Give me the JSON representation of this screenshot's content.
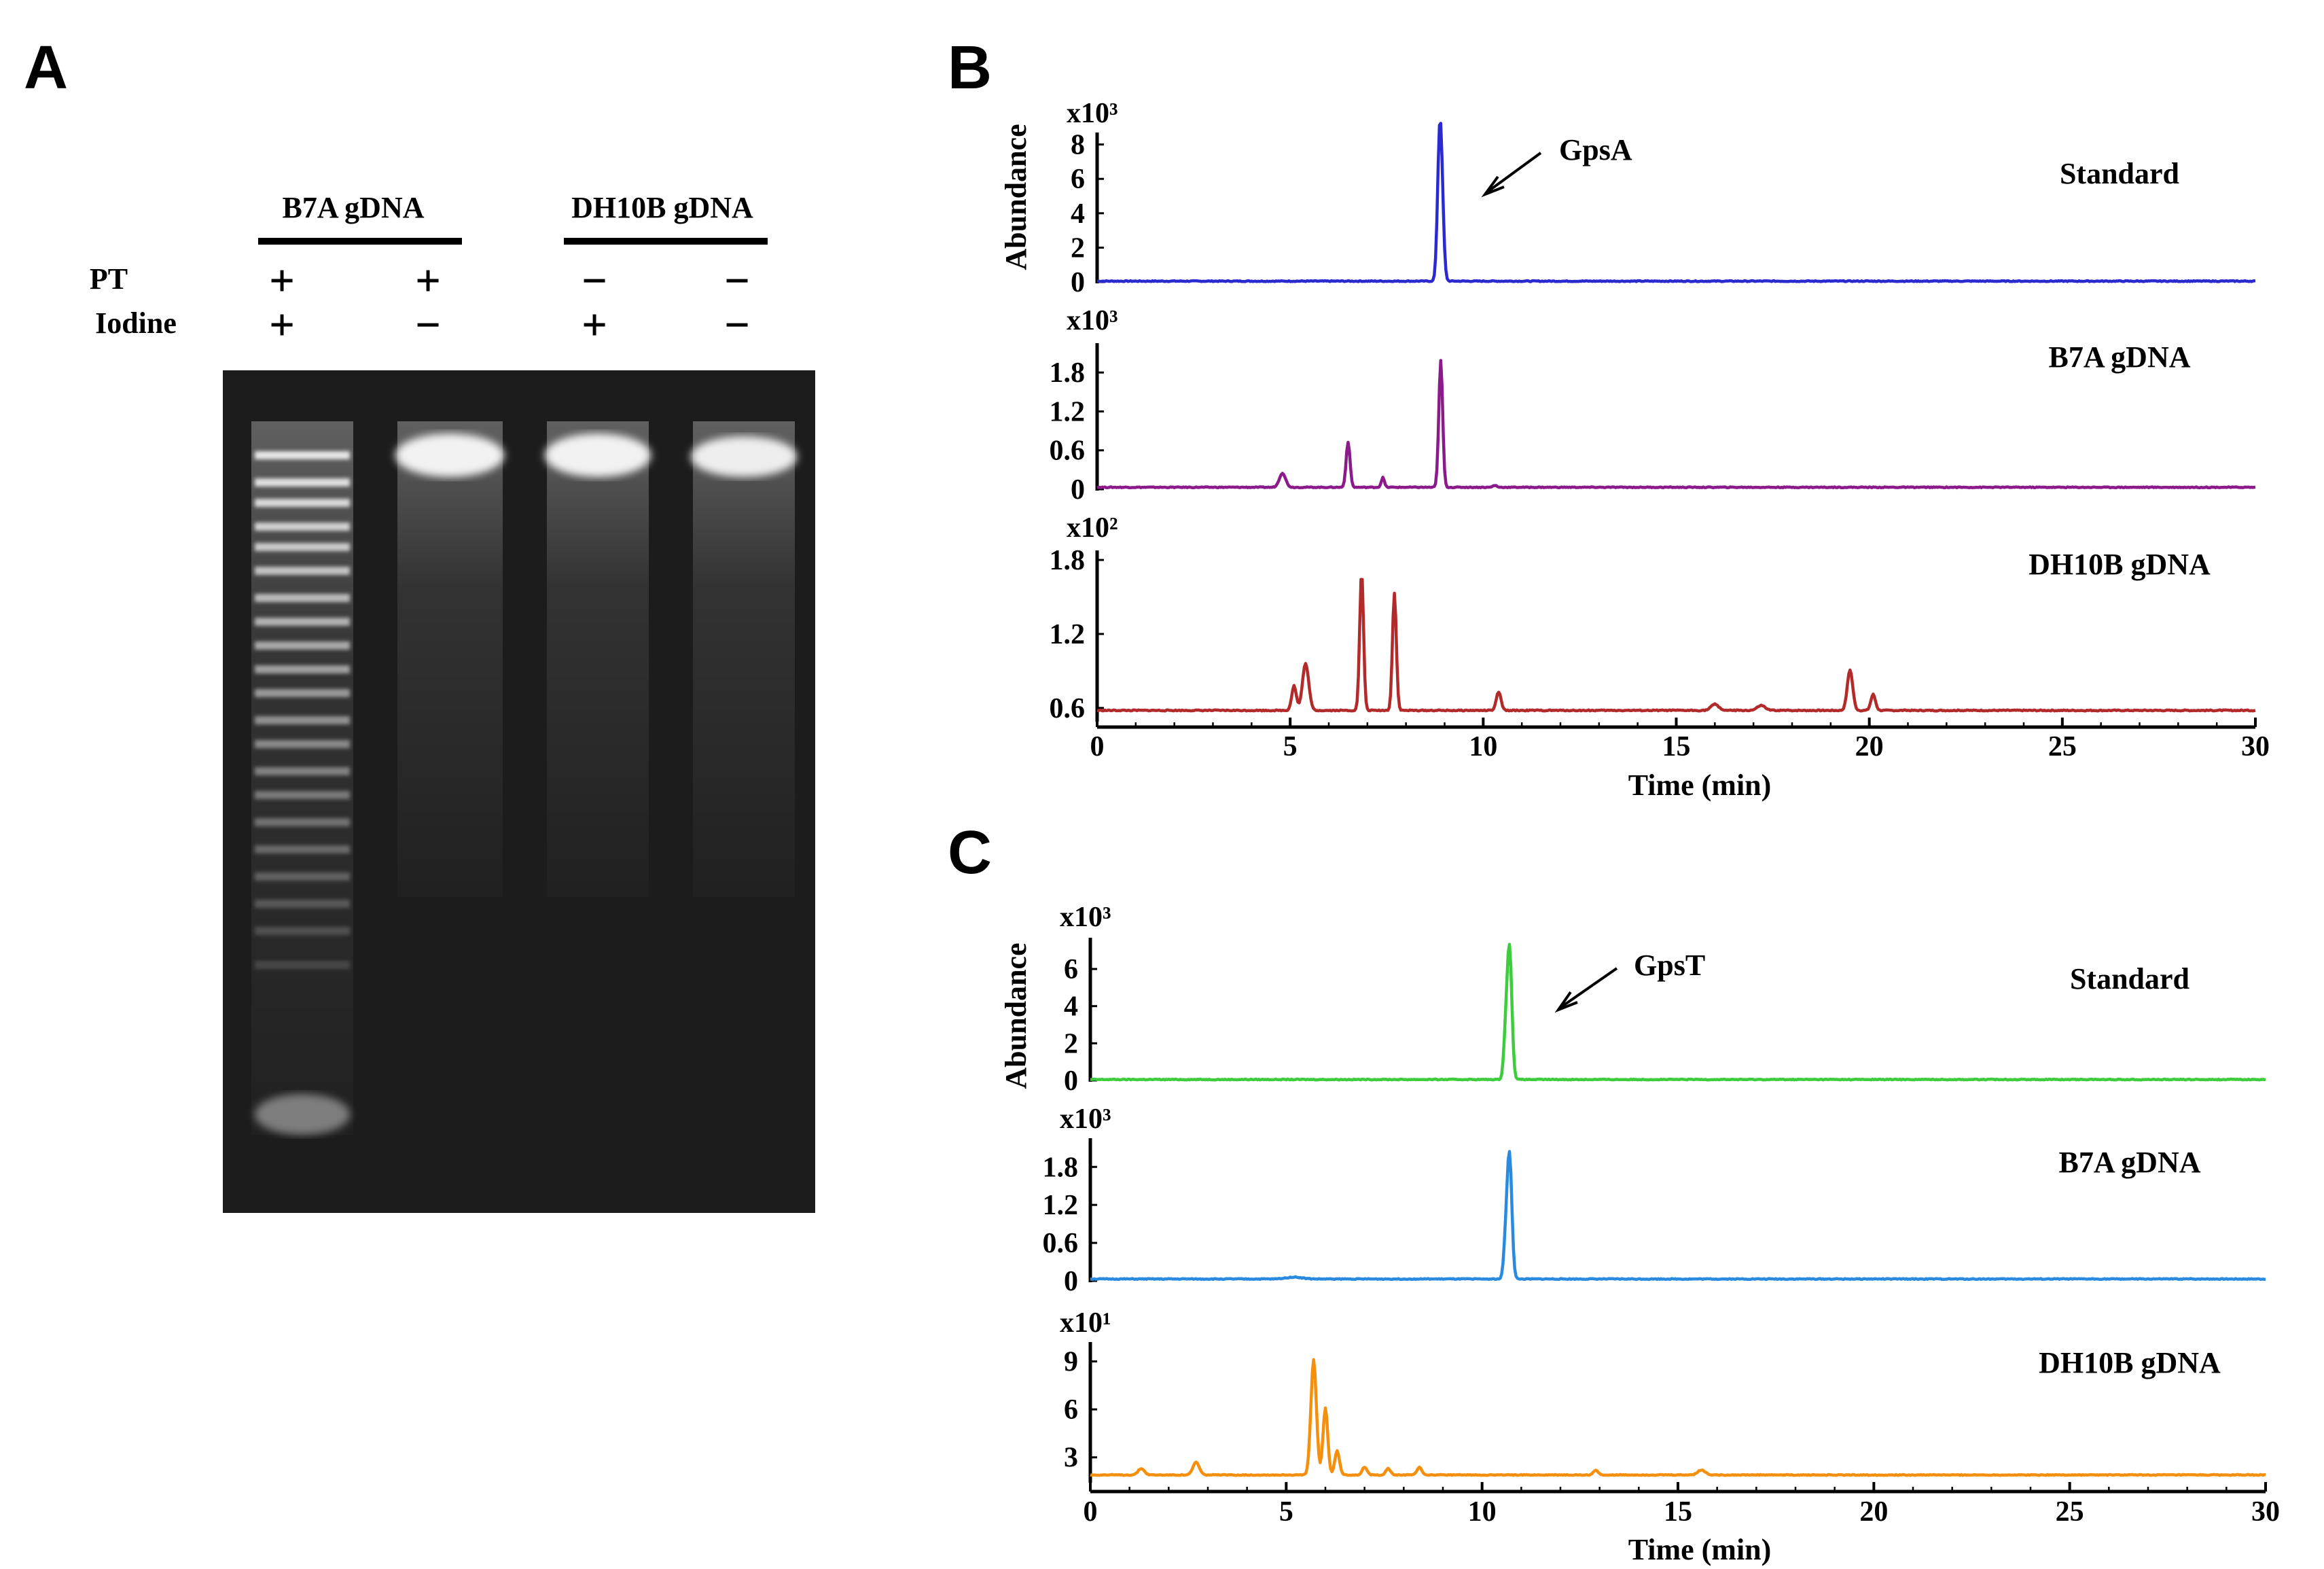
{
  "panels": {
    "A": "A",
    "B": "B",
    "C": "C"
  },
  "gel": {
    "group_labels": [
      "B7A gDNA",
      "DH10B gDNA"
    ],
    "row_labels": [
      "PT",
      "Iodine"
    ],
    "pt_signs": [
      "+",
      "+",
      "−",
      "−"
    ],
    "iodine_signs": [
      "+",
      "−",
      "+",
      "−"
    ]
  },
  "chart_data": [
    {
      "type": "line",
      "panel": "B",
      "xlabel": "Time (min)",
      "xlim": [
        0,
        30
      ],
      "xticks": [
        0,
        5,
        10,
        15,
        20,
        25,
        30
      ],
      "ylabel": "Abundance",
      "annotation": "GpsA",
      "traces": [
        {
          "name": "Standard",
          "multiplier": "x10³",
          "color": "#2a2ad0",
          "ylim": [
            0,
            8.5
          ],
          "yticks": [
            "0",
            "2",
            "4",
            "6",
            "8"
          ],
          "yvals": [
            0,
            2,
            4,
            6,
            8
          ],
          "peaks": [
            {
              "t": 8.9,
              "h": 7.5,
              "w": 0.06
            },
            {
              "t": 8.85,
              "h": 2.8,
              "w": 0.05
            }
          ],
          "baseline": 0.05
        },
        {
          "name": "B7A gDNA",
          "multiplier": "x10³",
          "color": "#8b1a8b",
          "ylim": [
            0,
            2.2
          ],
          "yticks": [
            "0",
            "0.6",
            "1.2",
            "1.8"
          ],
          "yvals": [
            0,
            0.6,
            1.2,
            1.8
          ],
          "peaks": [
            {
              "t": 4.8,
              "h": 0.22,
              "w": 0.08
            },
            {
              "t": 6.5,
              "h": 0.7,
              "w": 0.05
            },
            {
              "t": 7.4,
              "h": 0.15,
              "w": 0.04
            },
            {
              "t": 8.9,
              "h": 1.95,
              "w": 0.05
            },
            {
              "t": 10.3,
              "h": 0.03,
              "w": 0.05
            }
          ],
          "baseline": 0.03
        },
        {
          "name": "DH10B gDNA",
          "multiplier": "x10²",
          "color": "#b22a2a",
          "ylim": [
            0.5,
            1.85
          ],
          "yticks": [
            "0.6",
            "1.2",
            "1.8"
          ],
          "yvals": [
            0.6,
            1.2,
            1.8
          ],
          "peaks": [
            {
              "t": 5.1,
              "h": 0.2,
              "w": 0.06
            },
            {
              "t": 5.4,
              "h": 0.38,
              "w": 0.08
            },
            {
              "t": 6.85,
              "h": 1.12,
              "w": 0.05
            },
            {
              "t": 7.7,
              "h": 0.95,
              "w": 0.05
            },
            {
              "t": 10.4,
              "h": 0.15,
              "w": 0.06
            },
            {
              "t": 16.0,
              "h": 0.05,
              "w": 0.1
            },
            {
              "t": 17.2,
              "h": 0.04,
              "w": 0.1
            },
            {
              "t": 19.5,
              "h": 0.33,
              "w": 0.07
            },
            {
              "t": 20.1,
              "h": 0.13,
              "w": 0.06
            }
          ],
          "baseline": 0.58
        }
      ]
    },
    {
      "type": "line",
      "panel": "C",
      "xlabel": "Time (min)",
      "xlim": [
        0,
        30
      ],
      "xticks": [
        0,
        5,
        10,
        15,
        20,
        25,
        30
      ],
      "ylabel": "Abundance",
      "annotation": "GpsT",
      "traces": [
        {
          "name": "Standard",
          "multiplier": "x10³",
          "color": "#3ccc3c",
          "ylim": [
            0,
            7.5
          ],
          "yticks": [
            "0",
            "2",
            "4",
            "6"
          ],
          "yvals": [
            0,
            2,
            4,
            6
          ],
          "peaks": [
            {
              "t": 10.7,
              "h": 7.0,
              "w": 0.06
            },
            {
              "t": 10.6,
              "h": 2.0,
              "w": 0.05
            }
          ],
          "baseline": 0.05
        },
        {
          "name": "B7A gDNA",
          "multiplier": "x10³",
          "color": "#2a8ae0",
          "ylim": [
            0,
            2.2
          ],
          "yticks": [
            "0",
            "0.6",
            "1.2",
            "1.8"
          ],
          "yvals": [
            0,
            0.6,
            1.2,
            1.8
          ],
          "peaks": [
            {
              "t": 10.7,
              "h": 1.95,
              "w": 0.06
            },
            {
              "t": 10.6,
              "h": 0.5,
              "w": 0.05
            },
            {
              "t": 5.2,
              "h": 0.03,
              "w": 0.2
            }
          ],
          "baseline": 0.03
        },
        {
          "name": "DH10B gDNA",
          "multiplier": "x10¹",
          "color": "#f5900f",
          "ylim": [
            1.5,
            10
          ],
          "yticks": [
            "3",
            "6",
            "9"
          ],
          "yvals": [
            3,
            6,
            9
          ],
          "peaks": [
            {
              "t": 1.3,
              "h": 0.4,
              "w": 0.08
            },
            {
              "t": 2.7,
              "h": 0.8,
              "w": 0.08
            },
            {
              "t": 5.7,
              "h": 7.2,
              "w": 0.07
            },
            {
              "t": 6.0,
              "h": 4.2,
              "w": 0.06
            },
            {
              "t": 6.3,
              "h": 1.5,
              "w": 0.06
            },
            {
              "t": 7.0,
              "h": 0.5,
              "w": 0.06
            },
            {
              "t": 7.6,
              "h": 0.4,
              "w": 0.06
            },
            {
              "t": 8.4,
              "h": 0.5,
              "w": 0.06
            },
            {
              "t": 12.9,
              "h": 0.3,
              "w": 0.06
            },
            {
              "t": 15.6,
              "h": 0.3,
              "w": 0.1
            }
          ],
          "baseline": 1.9
        }
      ]
    }
  ]
}
